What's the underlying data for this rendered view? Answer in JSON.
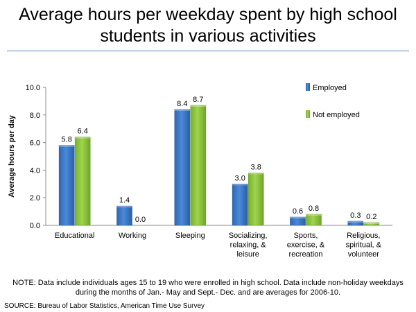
{
  "chart_data": {
    "type": "bar",
    "title": "Average hours per weekday spent by high school students in various activities",
    "ylabel": "Average hours per day",
    "xlabel": "",
    "ylim": [
      0,
      10
    ],
    "yticks": [
      "0.0",
      "2.0",
      "4.0",
      "6.0",
      "8.0",
      "10.0"
    ],
    "grid": false,
    "legend_position": "top-right",
    "categories": [
      [
        "Educational"
      ],
      [
        "Working"
      ],
      [
        "Sleeping"
      ],
      [
        "Socializing,",
        "relaxing, &",
        "leisure"
      ],
      [
        "Sports,",
        "exercise, &",
        "recreation"
      ],
      [
        "Religious,",
        "spiritual, &",
        "volunteer"
      ]
    ],
    "series": [
      {
        "name": "Employed",
        "color": "#3a78c8",
        "values": [
          5.8,
          1.4,
          8.4,
          3.0,
          0.6,
          0.3
        ],
        "labels": [
          "5.8",
          "1.4",
          "8.4",
          "3.0",
          "0.6",
          "0.3"
        ]
      },
      {
        "name": "Not employed",
        "color": "#8cc63f",
        "values": [
          6.4,
          0.0,
          8.7,
          3.8,
          0.8,
          0.2
        ],
        "labels": [
          "6.4",
          "0.0",
          "8.7",
          "3.8",
          "0.8",
          "0.2"
        ]
      }
    ]
  },
  "note": "NOTE: Data include individuals ages 15 to 19 who were enrolled in high school. Data include non-holiday weekdays during the months of Jan.- May and Sept.- Dec. and are averages for 2006-10.",
  "source": "SOURCE: Bureau of Labor Statistics, American Time Use Survey"
}
